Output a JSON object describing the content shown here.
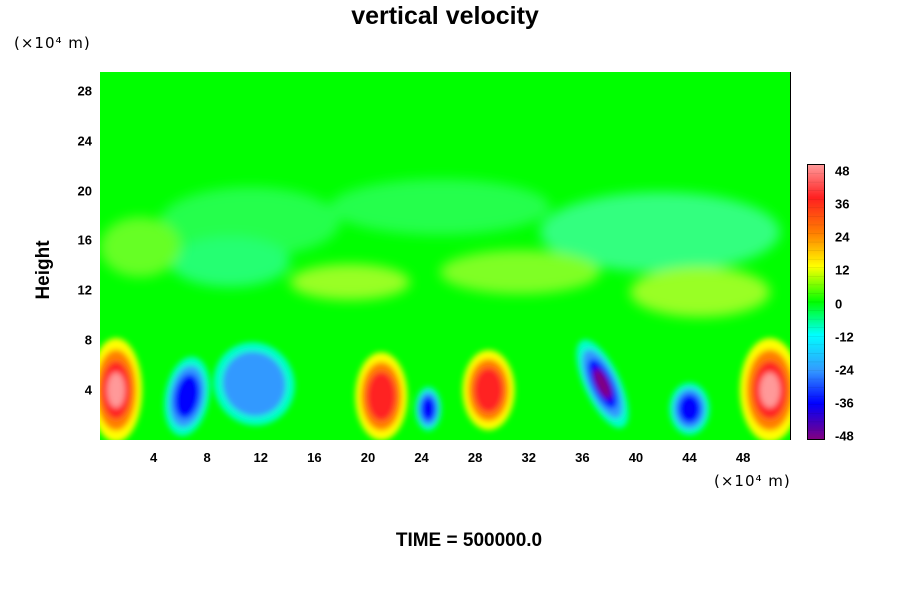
{
  "title": "vertical velocity",
  "y_unit_label": "(×10⁴ m)",
  "x_unit_label": "(×10⁴ m)",
  "ylabel": "Height",
  "footer": "TIME = 500000.0",
  "chart_data": {
    "type": "heatmap",
    "title": "vertical velocity",
    "xlabel": "",
    "ylabel": "Height",
    "x_unit": "(×10⁴ m)",
    "y_unit": "(×10⁴ m)",
    "xlim": [
      0,
      51.5
    ],
    "ylim": [
      0,
      29.5
    ],
    "x_ticks": [
      4,
      8,
      12,
      16,
      20,
      24,
      28,
      32,
      36,
      40,
      44,
      48
    ],
    "y_ticks": [
      4,
      8,
      12,
      16,
      20,
      24,
      28
    ],
    "colorbar": {
      "ticks": [
        48,
        36,
        24,
        12,
        0,
        -12,
        -24,
        -36,
        -48
      ],
      "range": [
        -48,
        48
      ],
      "colors": [
        "#ff8080",
        "#ff0000",
        "#ff8000",
        "#ffff00",
        "#00ff00",
        "#00ffff",
        "#0000ff",
        "#800080"
      ]
    },
    "features": [
      {
        "x": 1.2,
        "y": 4.0,
        "value": 48
      },
      {
        "x": 6.5,
        "y": 3.5,
        "value": -30
      },
      {
        "x": 11.5,
        "y": 4.5,
        "value": -28
      },
      {
        "x": 21.0,
        "y": 3.5,
        "value": 40
      },
      {
        "x": 24.5,
        "y": 2.5,
        "value": -36
      },
      {
        "x": 29.0,
        "y": 4.0,
        "value": 36
      },
      {
        "x": 37.5,
        "y": 4.5,
        "value": -48
      },
      {
        "x": 44.0,
        "y": 2.5,
        "value": -34
      },
      {
        "x": 50.0,
        "y": 4.0,
        "value": 44
      }
    ],
    "footer": "TIME = 500000.0"
  }
}
